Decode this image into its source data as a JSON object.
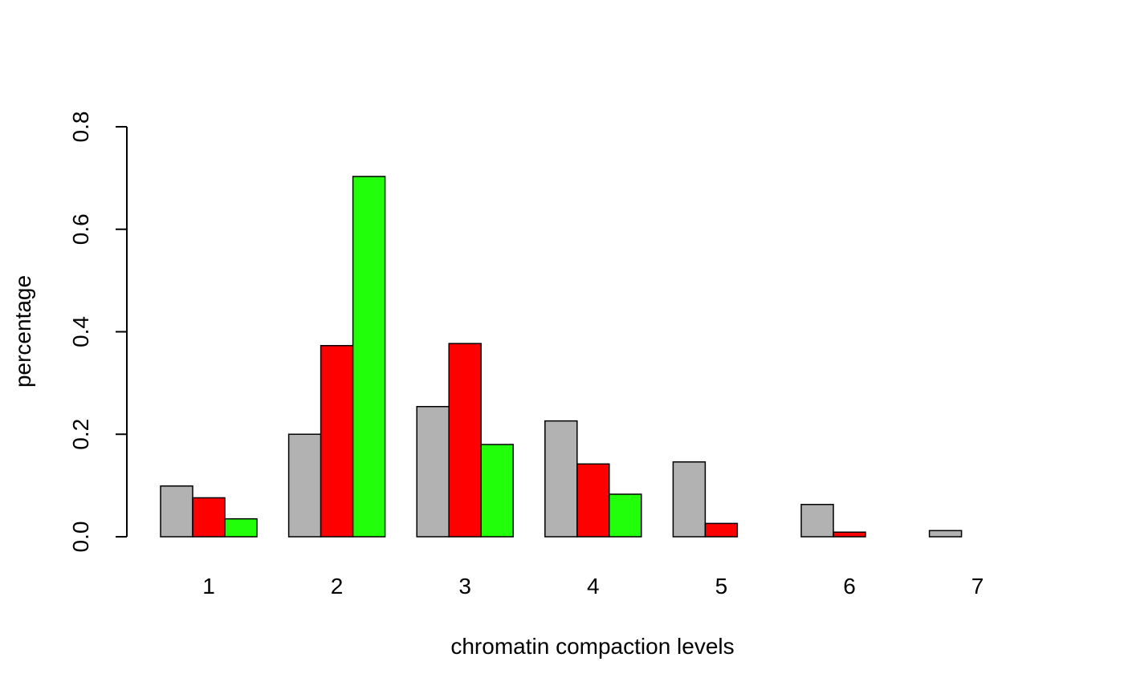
{
  "chart_data": {
    "type": "bar",
    "title": "",
    "xlabel": "chromatin compaction levels",
    "ylabel": "percentage",
    "categories": [
      "1",
      "2",
      "3",
      "4",
      "5",
      "6",
      "7"
    ],
    "ylim": [
      0,
      0.8
    ],
    "yticks": [
      "0.0",
      "0.2",
      "0.4",
      "0.6",
      "0.8"
    ],
    "grid": false,
    "legend": "none",
    "series": [
      {
        "color": "#b2b2b2",
        "values": [
          0.099,
          0.2,
          0.254,
          0.226,
          0.146,
          0.063,
          0.012
        ]
      },
      {
        "color": "#ff0000",
        "values": [
          0.076,
          0.373,
          0.377,
          0.142,
          0.026,
          0.009,
          0.0
        ]
      },
      {
        "color": "#22ff0a",
        "values": [
          0.035,
          0.703,
          0.18,
          0.083,
          0.0,
          0.0,
          0.0
        ]
      }
    ]
  }
}
